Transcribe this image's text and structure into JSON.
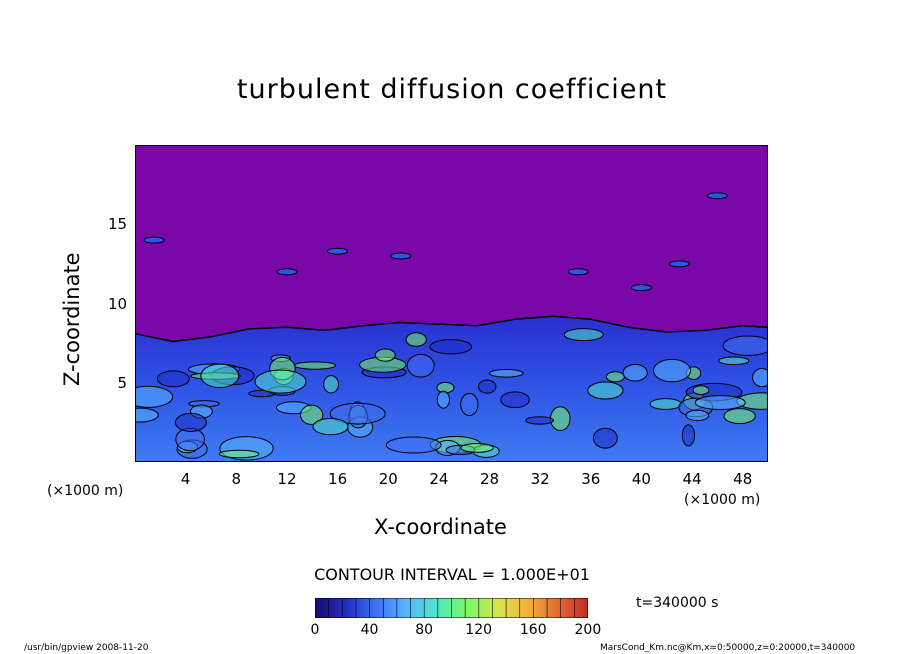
{
  "chart_data": {
    "type": "heatmap",
    "title": "turbulent diffusion coefficient",
    "xlabel": "X-coordinate",
    "ylabel": "Z-coordinate",
    "x_unit_label": "(×1000 m)",
    "x_ticks": [
      4,
      8,
      12,
      16,
      20,
      24,
      28,
      32,
      36,
      40,
      44,
      48
    ],
    "y_ticks": [
      5,
      10,
      15
    ],
    "xlim": [
      0,
      50
    ],
    "ylim": [
      0,
      20
    ],
    "contour_interval_label": "CONTOUR INTERVAL = 1.000E+01",
    "time_label": "t=340000 s",
    "colorbar": {
      "range": [
        0,
        200
      ],
      "ticks": [
        0,
        40,
        80,
        120,
        160,
        200
      ],
      "colors": [
        "#1a0a6e",
        "#1f2bc7",
        "#3f6fef",
        "#57b5ff",
        "#4ee6c8",
        "#79f86a",
        "#d3e84c",
        "#f2b23d",
        "#e36a32",
        "#c42a24"
      ]
    },
    "background_color": "#7a07a8",
    "turbulent_layer_top": [
      [
        0,
        8.1
      ],
      [
        3,
        7.6
      ],
      [
        6,
        7.9
      ],
      [
        9,
        8.4
      ],
      [
        12,
        8.5
      ],
      [
        15,
        8.3
      ],
      [
        18,
        8.6
      ],
      [
        21,
        8.8
      ],
      [
        24,
        8.7
      ],
      [
        27,
        8.6
      ],
      [
        30,
        9.0
      ],
      [
        33,
        9.2
      ],
      [
        36,
        9.0
      ],
      [
        39,
        8.5
      ],
      [
        42,
        8.2
      ],
      [
        45,
        8.3
      ],
      [
        48,
        8.6
      ],
      [
        50,
        8.5
      ]
    ]
  },
  "footer": {
    "left": "/usr/bin/gpview   2008-11-20",
    "right": "MarsCond_Km.nc@Km,x=0:50000,z=0:20000,t=340000"
  }
}
